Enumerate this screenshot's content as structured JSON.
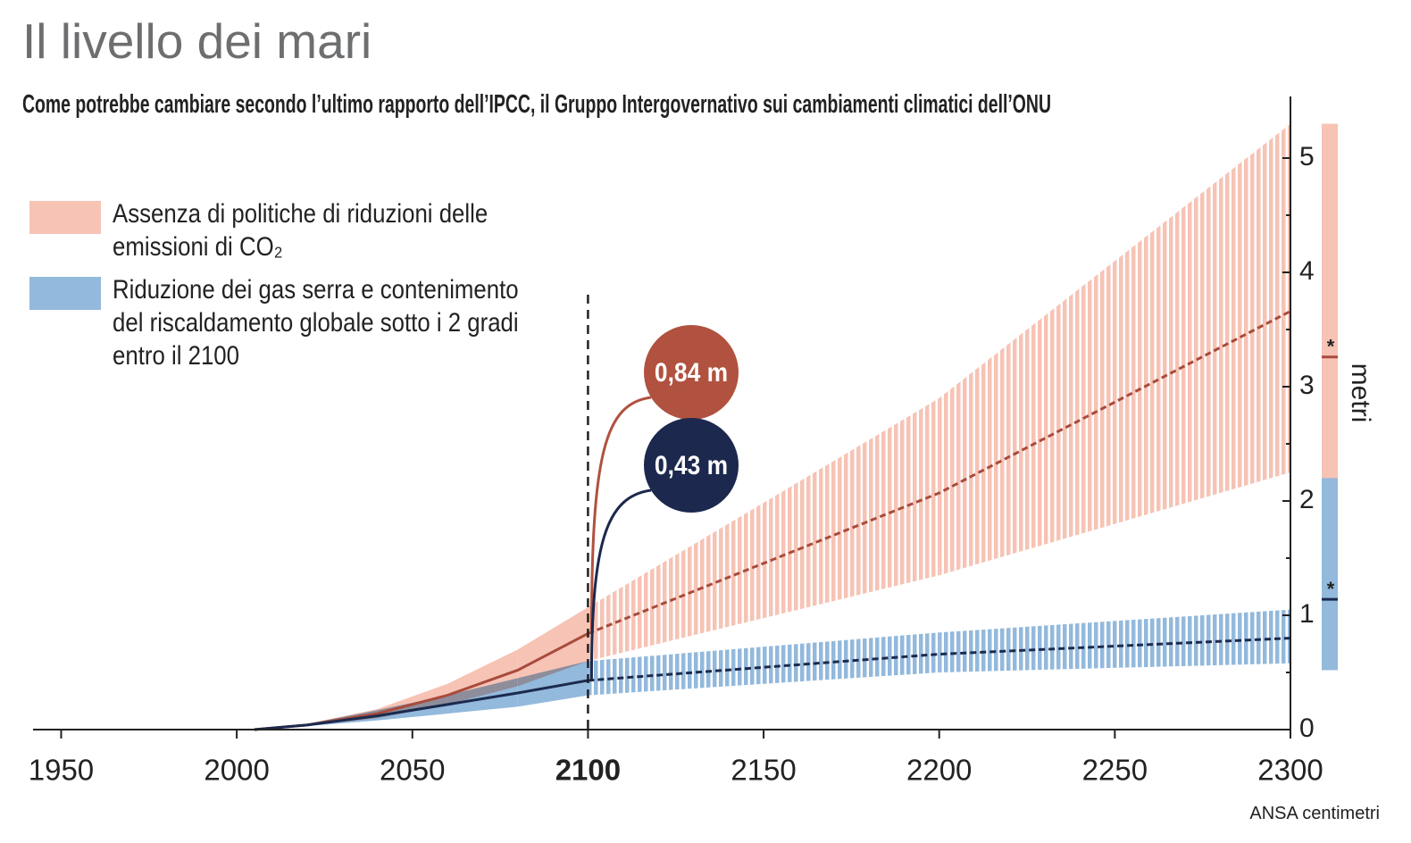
{
  "title": "Il livello dei mari",
  "subtitle": "Come potrebbe cambiare secondo l’ultimo rapporto dell’IPCC, il Gruppo Intergovernativo sui cambiamenti climatici dell’ONU",
  "source": "ANSA centimetri",
  "chart_data": {
    "type": "band",
    "x": [
      2005,
      2020,
      2040,
      2060,
      2080,
      2100,
      2200,
      2300
    ],
    "xlim": [
      1942,
      2300
    ],
    "xticks": [
      1950,
      2000,
      2050,
      2100,
      2150,
      2200,
      2250,
      2300
    ],
    "highlight_x": 2100,
    "ylim": [
      0,
      5.5
    ],
    "yticks": [
      0,
      1,
      2,
      3,
      4,
      5
    ],
    "minor_yticks": [
      0.5,
      1.5,
      2.5,
      3.5,
      4.5
    ],
    "y_label": "metri",
    "series": [
      {
        "name": "Assenza di politiche di riduzioni delle emissioni di CO₂",
        "color": "#f6c3b5",
        "line_color": "#a94b3b",
        "callout_color": "#b0523f",
        "values": [
          0,
          0.04,
          0.14,
          0.3,
          0.52,
          0.84,
          2.07,
          3.66
        ],
        "lower": [
          0,
          0.03,
          0.1,
          0.22,
          0.38,
          0.6,
          1.35,
          2.25
        ],
        "upper": [
          0,
          0.05,
          0.18,
          0.4,
          0.7,
          1.07,
          2.9,
          5.3
        ],
        "range": [
          1.95,
          5.3
        ],
        "range_median": 3.26,
        "range_note": "*",
        "callout": {
          "value": 0.84,
          "label": "0,84 m"
        }
      },
      {
        "name": "Riduzione dei gas serra e contenimento del riscaldamento globale sotto i 2 gradi entro il 2100",
        "color": "#93b9dc",
        "line_color": "#1b2a4e",
        "callout_color": "#1c284d",
        "values": [
          0,
          0.04,
          0.12,
          0.22,
          0.32,
          0.43,
          0.66,
          0.8
        ],
        "lower": [
          0,
          0.03,
          0.08,
          0.14,
          0.2,
          0.3,
          0.5,
          0.58
        ],
        "upper": [
          0,
          0.05,
          0.17,
          0.3,
          0.45,
          0.6,
          0.85,
          1.05
        ],
        "range": [
          0.52,
          2.2
        ],
        "range_median": 1.14,
        "range_note": "*",
        "callout": {
          "value": 0.43,
          "label": "0,43 m"
        }
      }
    ]
  }
}
